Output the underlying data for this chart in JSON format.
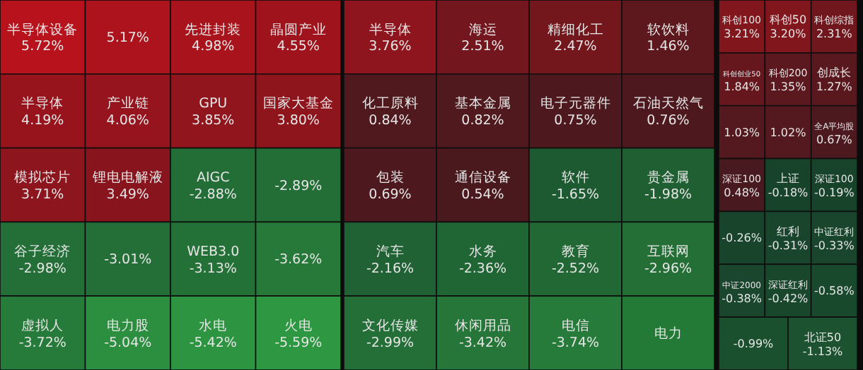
{
  "chart_data": [
    {
      "type": "other",
      "categories": [
        "半导体设备",
        null,
        "先进封装",
        "晶圆产业",
        "半导体",
        "产业链",
        "GPU",
        "国家大基金",
        "模拟芯片",
        "锂电电解液",
        "AIGC",
        null,
        "谷子经济",
        null,
        "WEB3.0",
        null,
        "虚拟人",
        "电力股",
        "水电",
        "火电"
      ],
      "values": [
        5.72,
        5.17,
        4.98,
        4.55,
        4.19,
        4.06,
        3.85,
        3.8,
        3.71,
        3.49,
        -2.88,
        -2.89,
        -2.98,
        -3.01,
        -3.13,
        -3.62,
        -3.72,
        -5.04,
        -5.42,
        -5.59
      ],
      "value_labels": [
        "5.72%",
        "5.17%",
        "4.98%",
        "4.55%",
        "4.19%",
        "4.06%",
        "3.85%",
        "3.80%",
        "3.71%",
        "3.49%",
        "-2.88%",
        "-2.89%",
        "-2.98%",
        "-3.01%",
        "-3.13%",
        "-3.62%",
        "-3.72%",
        "-5.04%",
        "-5.42%",
        "-5.59%"
      ]
    },
    {
      "type": "other",
      "categories": [
        "半导体",
        "海运",
        "精细化工",
        "软饮料",
        "化工原料",
        "基本金属",
        "电子元器件",
        "石油天然气",
        "包装",
        "通信设备",
        "软件",
        "贵金属",
        "汽车",
        "水务",
        "教育",
        "互联网",
        "文化传媒",
        "休闲用品",
        "电信",
        "电力"
      ],
      "values": [
        3.76,
        2.51,
        2.47,
        1.46,
        0.84,
        0.82,
        0.75,
        0.76,
        0.69,
        0.54,
        -1.65,
        -1.98,
        -2.16,
        -2.36,
        -2.52,
        -2.96,
        -2.99,
        -3.42,
        -3.74,
        null
      ],
      "value_labels": [
        "3.76%",
        "2.51%",
        "2.47%",
        "1.46%",
        "0.84%",
        "0.82%",
        "0.75%",
        "0.76%",
        "0.69%",
        "0.54%",
        "-1.65%",
        "-1.98%",
        "-2.16%",
        "-2.36%",
        "-2.52%",
        "-2.96%",
        "-2.99%",
        "-3.42%",
        "-3.74%",
        null
      ]
    },
    {
      "type": "other",
      "categories": [
        "科创100",
        "科创50",
        "科创综指",
        "科创创业50",
        "科创200",
        "创成长",
        null,
        null,
        "全A平均股",
        "深证100",
        "上证",
        "深证100",
        null,
        "红利",
        "中证红利",
        "中证2000",
        "深证红利",
        null,
        null,
        "北证50"
      ],
      "values": [
        3.21,
        3.2,
        2.31,
        1.84,
        1.35,
        1.27,
        1.03,
        1.02,
        0.67,
        0.48,
        -0.18,
        -0.19,
        -0.26,
        -0.31,
        -0.33,
        -0.38,
        -0.42,
        -0.58,
        -0.99,
        -1.13
      ],
      "value_labels": [
        "3.21%",
        "3.20%",
        "2.31%",
        "1.84%",
        "1.35%",
        "1.27%",
        "1.03%",
        "1.02%",
        "0.67%",
        "0.48%",
        "-0.18%",
        "-0.19%",
        "-0.26%",
        "-0.31%",
        "-0.33%",
        "-0.38%",
        "-0.42%",
        "-0.58%",
        "-0.99%",
        "-1.13%"
      ]
    }
  ]
}
